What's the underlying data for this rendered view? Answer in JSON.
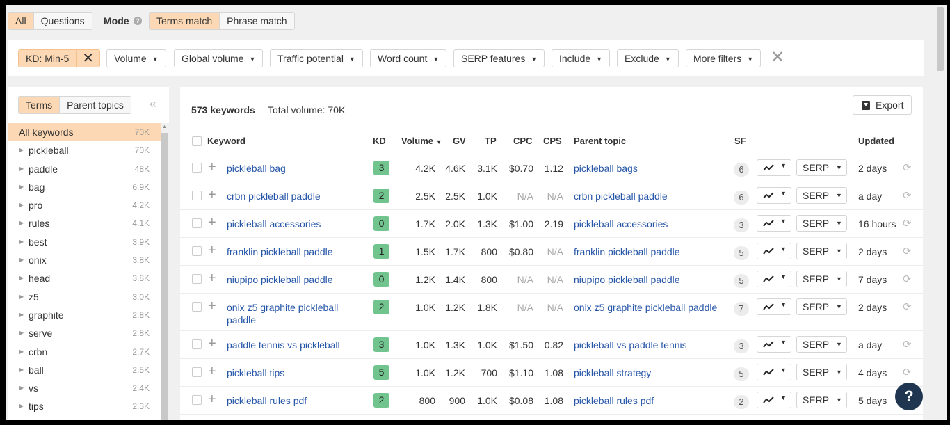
{
  "mode_bar": {
    "scope_tabs": [
      "All",
      "Questions"
    ],
    "mode_label": "Mode",
    "match_tabs": [
      "Terms match",
      "Phrase match"
    ]
  },
  "filters": {
    "kd_chip": "KD: Min-5",
    "chips": [
      "Volume",
      "Global volume",
      "Traffic potential",
      "Word count",
      "SERP features",
      "Include",
      "Exclude",
      "More filters"
    ]
  },
  "left_panel": {
    "tabs": [
      "Terms",
      "Parent topics"
    ],
    "items": [
      {
        "label": "All keywords",
        "count": "70K"
      },
      {
        "label": "pickleball",
        "count": "70K"
      },
      {
        "label": "paddle",
        "count": "48K"
      },
      {
        "label": "bag",
        "count": "6.9K"
      },
      {
        "label": "pro",
        "count": "4.2K"
      },
      {
        "label": "rules",
        "count": "4.1K"
      },
      {
        "label": "best",
        "count": "3.9K"
      },
      {
        "label": "onix",
        "count": "3.8K"
      },
      {
        "label": "head",
        "count": "3.8K"
      },
      {
        "label": "z5",
        "count": "3.0K"
      },
      {
        "label": "graphite",
        "count": "2.8K"
      },
      {
        "label": "serve",
        "count": "2.8K"
      },
      {
        "label": "crbn",
        "count": "2.7K"
      },
      {
        "label": "ball",
        "count": "2.5K"
      },
      {
        "label": "vs",
        "count": "2.4K"
      },
      {
        "label": "tips",
        "count": "2.3K"
      }
    ]
  },
  "main": {
    "keyword_count": "573 keywords",
    "total_volume": "Total volume: 70K",
    "export_label": "Export",
    "columns": {
      "keyword": "Keyword",
      "kd": "KD",
      "volume": "Volume",
      "gv": "GV",
      "tp": "TP",
      "cpc": "CPC",
      "cps": "CPS",
      "parent_topic": "Parent topic",
      "sf": "SF",
      "updated": "Updated"
    },
    "serp_label": "SERP",
    "rows": [
      {
        "keyword": "pickleball bag",
        "kd": "3",
        "volume": "4.2K",
        "gv": "4.6K",
        "tp": "3.1K",
        "cpc": "$0.70",
        "cps": "1.12",
        "parent_topic": "pickleball bags",
        "sf": "6",
        "updated": "2 days"
      },
      {
        "keyword": "crbn pickleball paddle",
        "kd": "2",
        "volume": "2.5K",
        "gv": "2.5K",
        "tp": "1.0K",
        "cpc": "N/A",
        "cps": "N/A",
        "parent_topic": "crbn pickleball paddle",
        "sf": "6",
        "updated": "a day"
      },
      {
        "keyword": "pickleball accessories",
        "kd": "0",
        "volume": "1.7K",
        "gv": "2.0K",
        "tp": "1.3K",
        "cpc": "$1.00",
        "cps": "2.19",
        "parent_topic": "pickleball accessories",
        "sf": "3",
        "updated": "16 hours"
      },
      {
        "keyword": "franklin pickleball paddle",
        "kd": "1",
        "volume": "1.5K",
        "gv": "1.7K",
        "tp": "800",
        "cpc": "$0.80",
        "cps": "N/A",
        "parent_topic": "franklin pickleball paddle",
        "sf": "5",
        "updated": "2 days"
      },
      {
        "keyword": "niupipo pickleball paddle",
        "kd": "0",
        "volume": "1.2K",
        "gv": "1.4K",
        "tp": "800",
        "cpc": "N/A",
        "cps": "N/A",
        "parent_topic": "niupipo pickleball paddle",
        "sf": "5",
        "updated": "7 days"
      },
      {
        "keyword": "onix z5 graphite pickleball paddle",
        "kd": "2",
        "volume": "1.0K",
        "gv": "1.2K",
        "tp": "1.8K",
        "cpc": "N/A",
        "cps": "N/A",
        "parent_topic": "onix z5 graphite pickleball paddle",
        "sf": "7",
        "updated": "2 days"
      },
      {
        "keyword": "paddle tennis vs pickleball",
        "kd": "3",
        "volume": "1.0K",
        "gv": "1.3K",
        "tp": "1.0K",
        "cpc": "$1.50",
        "cps": "0.82",
        "parent_topic": "pickleball vs paddle tennis",
        "sf": "3",
        "updated": "a day"
      },
      {
        "keyword": "pickleball tips",
        "kd": "5",
        "volume": "1.0K",
        "gv": "1.2K",
        "tp": "700",
        "cpc": "$1.10",
        "cps": "1.08",
        "parent_topic": "pickleball strategy",
        "sf": "5",
        "updated": "4 days"
      },
      {
        "keyword": "pickleball rules pdf",
        "kd": "2",
        "volume": "800",
        "gv": "900",
        "tp": "1.0K",
        "cpc": "$0.08",
        "cps": "1.08",
        "parent_topic": "pickleball rules pdf",
        "sf": "2",
        "updated": "5 days"
      }
    ]
  },
  "help_label": "?"
}
